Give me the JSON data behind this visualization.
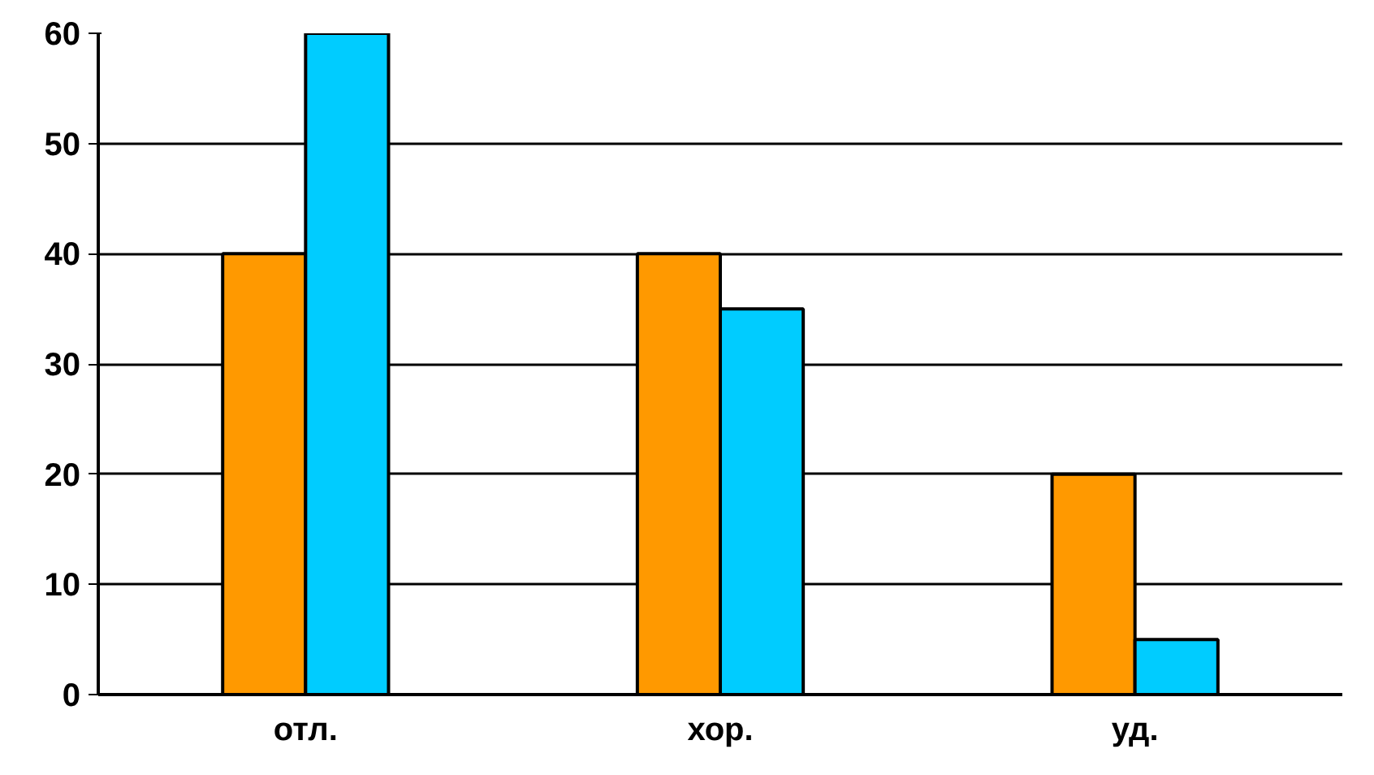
{
  "chart_data": {
    "type": "bar",
    "categories": [
      "отл.",
      "хор.",
      "уд."
    ],
    "series": [
      {
        "color": "#ff9900",
        "values": [
          40,
          40,
          20
        ]
      },
      {
        "color": "#00ccff",
        "values": [
          60,
          35,
          5
        ]
      }
    ],
    "ylim": [
      0,
      60
    ],
    "yticks": [
      0,
      10,
      20,
      30,
      40,
      50,
      60
    ],
    "grid": "y"
  }
}
